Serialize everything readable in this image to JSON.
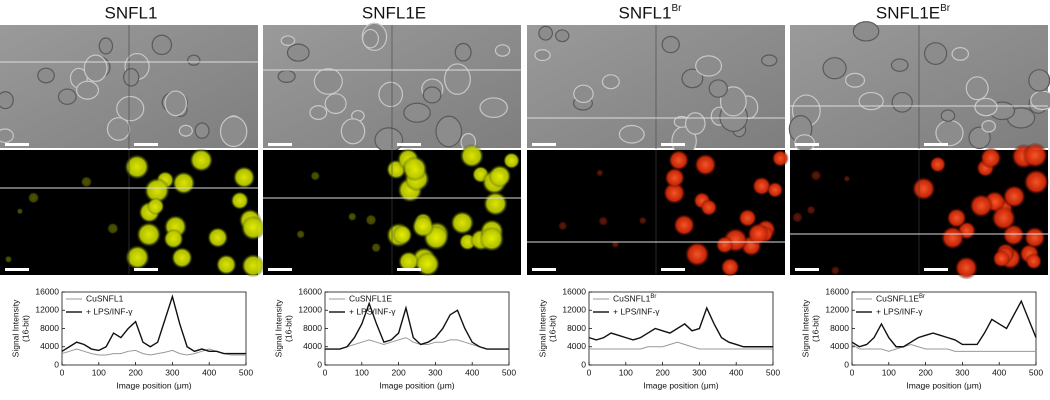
{
  "chart_data": [
    {
      "type": "line",
      "title": "SNFL1",
      "xlabel": "Image position (μm)",
      "ylabel": [
        "Signal Intensity",
        "(16-bit)"
      ],
      "x": [
        0,
        20,
        40,
        60,
        80,
        100,
        120,
        140,
        160,
        180,
        200,
        220,
        240,
        260,
        280,
        300,
        320,
        340,
        360,
        380,
        400,
        420,
        440,
        460,
        480,
        500
      ],
      "xlim": [
        0,
        500
      ],
      "xticks": [
        0,
        100,
        200,
        300,
        400,
        500
      ],
      "ylim": [
        0,
        16000
      ],
      "yticks": [
        0,
        4000,
        8000,
        12000,
        16000
      ],
      "series": [
        {
          "name": "CuSNFL1",
          "color": "#999999",
          "values": [
            2500,
            3000,
            3500,
            3000,
            2500,
            2200,
            2200,
            2500,
            2500,
            3000,
            3200,
            2500,
            2200,
            2500,
            2800,
            3200,
            2500,
            2200,
            2500,
            3000,
            3500,
            3000,
            2500,
            2200,
            2200,
            2200
          ]
        },
        {
          "name": "+ LPS/INF-γ",
          "color": "#111111",
          "values": [
            3000,
            4000,
            5000,
            4500,
            3500,
            3200,
            4000,
            7000,
            6000,
            8000,
            9500,
            5000,
            4000,
            5000,
            10000,
            15000,
            9000,
            4000,
            3000,
            3500,
            3000,
            3000,
            2500,
            2500,
            2500,
            2500
          ]
        }
      ]
    },
    {
      "type": "line",
      "title": "SNFL1E",
      "xlabel": "Image position (μm)",
      "ylabel": [
        "Signal Intensity",
        "(16-bit)"
      ],
      "x": [
        0,
        20,
        40,
        60,
        80,
        100,
        120,
        140,
        160,
        180,
        200,
        220,
        240,
        260,
        280,
        300,
        320,
        340,
        360,
        380,
        400,
        420,
        440,
        460,
        480,
        500
      ],
      "xlim": [
        0,
        500
      ],
      "xticks": [
        0,
        100,
        200,
        300,
        400,
        500
      ],
      "ylim": [
        0,
        16000
      ],
      "yticks": [
        0,
        4000,
        8000,
        12000,
        16000
      ],
      "series": [
        {
          "name": "CuSNFL1E",
          "color": "#999999",
          "values": [
            3500,
            3500,
            3500,
            4000,
            4500,
            5000,
            5500,
            5000,
            4500,
            5000,
            5500,
            6000,
            5000,
            4500,
            4500,
            5000,
            5000,
            5500,
            5500,
            5000,
            4500,
            4000,
            3500,
            3500,
            3500,
            3500
          ]
        },
        {
          "name": "+ LPS/INF-γ",
          "color": "#111111",
          "values": [
            3500,
            3500,
            3500,
            4000,
            6000,
            9000,
            13500,
            9000,
            5000,
            5500,
            7000,
            12500,
            6000,
            4500,
            5000,
            6000,
            8000,
            11000,
            12000,
            8000,
            5000,
            4000,
            3500,
            3500,
            3500,
            3500
          ]
        }
      ]
    },
    {
      "type": "line",
      "title": "SNFL1",
      "title_sup": "Br",
      "xlabel": "Image position (μm)",
      "ylabel": [
        "Signal Intensity",
        "(16-bit)"
      ],
      "x": [
        0,
        20,
        40,
        60,
        80,
        100,
        120,
        140,
        160,
        180,
        200,
        220,
        240,
        260,
        280,
        300,
        320,
        340,
        360,
        380,
        400,
        420,
        440,
        460,
        480,
        500
      ],
      "xlim": [
        0,
        500
      ],
      "xticks": [
        0,
        100,
        200,
        300,
        400,
        500
      ],
      "ylim": [
        0,
        16000
      ],
      "yticks": [
        0,
        4000,
        8000,
        12000,
        16000
      ],
      "series": [
        {
          "name": "CuSNFL1",
          "name_sup": "Br",
          "color": "#999999",
          "values": [
            3500,
            3500,
            3500,
            3500,
            3500,
            3500,
            3500,
            3500,
            4000,
            4000,
            4000,
            4500,
            5000,
            4500,
            4000,
            3500,
            3500,
            3500,
            3500,
            3500,
            3500,
            3500,
            3500,
            3500,
            3500,
            3500
          ]
        },
        {
          "name": "+ LPS/INF-γ",
          "color": "#111111",
          "values": [
            6000,
            5500,
            6000,
            7000,
            6500,
            6000,
            5500,
            6000,
            7000,
            8000,
            7500,
            7000,
            8000,
            9000,
            7500,
            8000,
            12500,
            9000,
            6000,
            5000,
            4500,
            4000,
            4000,
            4000,
            4000,
            4000
          ]
        }
      ]
    },
    {
      "type": "line",
      "title": "SNFL1E",
      "title_sup": "Br",
      "xlabel": "Image position (μm)",
      "ylabel": [
        "Signal Intensity",
        "(16-bit)"
      ],
      "x": [
        0,
        20,
        40,
        60,
        80,
        100,
        120,
        140,
        160,
        180,
        200,
        220,
        240,
        260,
        280,
        300,
        320,
        340,
        360,
        380,
        400,
        420,
        440,
        460,
        480,
        500
      ],
      "xlim": [
        0,
        500
      ],
      "xticks": [
        0,
        100,
        200,
        300,
        400,
        500
      ],
      "ylim": [
        0,
        16000
      ],
      "yticks": [
        0,
        4000,
        8000,
        12000,
        16000
      ],
      "series": [
        {
          "name": "CuSNFL1E",
          "name_sup": "Br",
          "color": "#999999",
          "values": [
            4500,
            3500,
            3500,
            3500,
            3500,
            3000,
            3500,
            4000,
            4500,
            4000,
            3500,
            3500,
            3500,
            3500,
            3000,
            3000,
            3000,
            3000,
            3000,
            3000,
            3000,
            3000,
            3000,
            3000,
            3000,
            3000
          ]
        },
        {
          "name": "+ LPS/INF-γ",
          "color": "#111111",
          "values": [
            5000,
            4000,
            4500,
            6000,
            9000,
            6000,
            4000,
            4000,
            5000,
            6000,
            6500,
            7000,
            6500,
            6000,
            5500,
            4500,
            4500,
            4500,
            7000,
            10000,
            9000,
            8000,
            11000,
            14000,
            10000,
            6000
          ]
        }
      ]
    }
  ]
}
